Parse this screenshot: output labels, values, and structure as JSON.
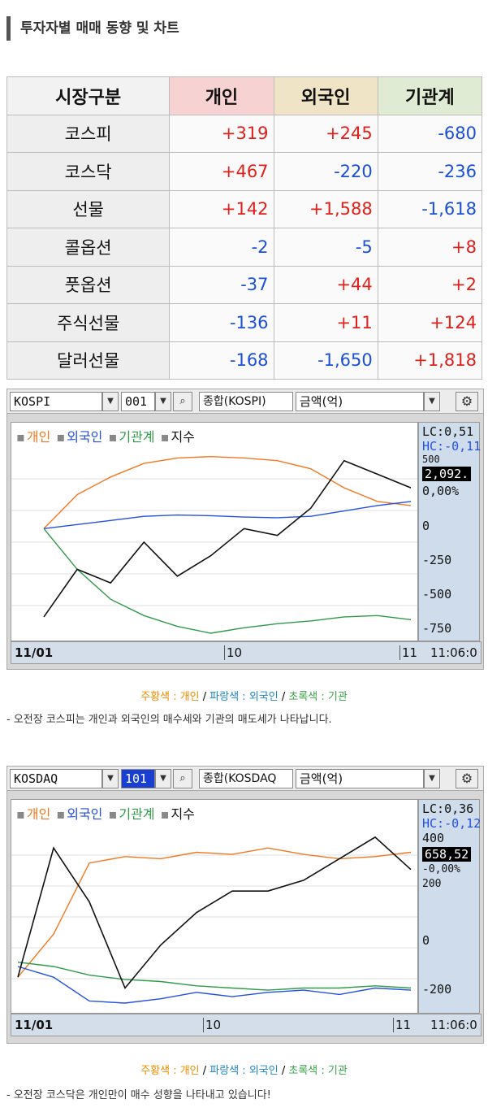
{
  "section_title": "투자자별 매매 동향 및 차트",
  "table": {
    "headers": [
      "시장구분",
      "개인",
      "외국인",
      "기관계"
    ],
    "rows": [
      {
        "label": "코스피",
        "values": [
          "+319",
          "+245",
          "-680"
        ]
      },
      {
        "label": "코스닥",
        "values": [
          "+467",
          "-220",
          "-236"
        ]
      },
      {
        "label": "선물",
        "values": [
          "+142",
          "+1,588",
          "-1,618"
        ]
      },
      {
        "label": "콜옵션",
        "values": [
          "-2",
          "-5",
          "+8"
        ]
      },
      {
        "label": "풋옵션",
        "values": [
          "-37",
          "+44",
          "+2"
        ]
      },
      {
        "label": "주식선물",
        "values": [
          "-136",
          "+11",
          "+124"
        ]
      },
      {
        "label": "달러선물",
        "values": [
          "-168",
          "-1,650",
          "+1,818"
        ]
      }
    ]
  },
  "charts": [
    {
      "market": "KOSPI",
      "code": "001",
      "index_name": "종합(KOSPI)",
      "unit": "금액(억)",
      "legend": [
        "개인",
        "외국인",
        "기관계",
        "지수"
      ],
      "lc": "LC:0,51",
      "hc": "HC:-0,11",
      "index_value": "2,092.",
      "change": "0,00%",
      "y_ticks": [
        "500",
        "0",
        "-250",
        "-500",
        "-750"
      ],
      "date": "11/01",
      "x_ticks": [
        "10",
        "11"
      ],
      "time": "11:06:0",
      "caption_parts": [
        "주황색 : 개인",
        "파랑색 : 외국인",
        "초록색 : 기관"
      ],
      "description": "- 오전장 코스피는 개인과 외국인의 매수세와 기관의 매도세가 나타납니다."
    },
    {
      "market": "KOSDAQ",
      "code": "101",
      "index_name": "종합(KOSDAQ",
      "unit": "금액(억)",
      "legend": [
        "개인",
        "외국인",
        "기관계",
        "지수"
      ],
      "lc": "LC:0,36",
      "hc": "HC:-0,12",
      "index_value": "658,52",
      "change": "-0,00%",
      "y_ticks": [
        "400",
        "200",
        "0",
        "-200"
      ],
      "date": "11/01",
      "x_ticks": [
        "10",
        "11"
      ],
      "time": "11:06:0",
      "caption_parts": [
        "주황색 : 개인",
        "파랑색 : 외국인",
        "초록색 : 기관"
      ],
      "description": "- 오전장 코스닥은 개인만이 매수 성향을 나타내고 있습니다!"
    }
  ],
  "colors": {
    "individual": "#f07820",
    "foreign": "#2450e0",
    "institution": "#2e9a48",
    "index": "#111111",
    "caption_orange": "#f28c00",
    "caption_blue": "#1f86c8",
    "caption_green": "#3aa24a",
    "positive": "#e0201b",
    "negative": "#1a4fd8"
  },
  "chart_data": [
    {
      "type": "line",
      "series": [
        {
          "name": "개인",
          "values": [
            0,
            250,
            380,
            480,
            520,
            530,
            520,
            500,
            440,
            300,
            200,
            170
          ]
        },
        {
          "name": "외국인",
          "values": [
            0,
            30,
            60,
            90,
            100,
            95,
            85,
            80,
            90,
            130,
            170,
            200
          ]
        },
        {
          "name": "기관계",
          "values": [
            0,
            -300,
            -520,
            -640,
            -720,
            -770,
            -730,
            -700,
            -680,
            -650,
            -640,
            -670
          ]
        },
        {
          "name": "지수",
          "values": [
            -650,
            -300,
            -400,
            -100,
            -350,
            -200,
            0,
            -50,
            150,
            500,
            400,
            300
          ]
        }
      ],
      "ylim": [
        -800,
        600
      ]
    },
    {
      "type": "line",
      "series": [
        {
          "name": "개인",
          "values": [
            -150,
            50,
            380,
            410,
            400,
            430,
            420,
            450,
            420,
            400,
            410,
            430
          ]
        },
        {
          "name": "외국인",
          "values": [
            -100,
            -150,
            -260,
            -270,
            -250,
            -220,
            -240,
            -220,
            -210,
            -230,
            -200,
            -210
          ]
        },
        {
          "name": "기관계",
          "values": [
            -80,
            -100,
            -140,
            -160,
            -170,
            -190,
            -200,
            -210,
            -200,
            -200,
            -190,
            -200
          ]
        },
        {
          "name": "지수",
          "values": [
            -150,
            450,
            200,
            -200,
            0,
            150,
            250,
            250,
            300,
            400,
            500,
            350
          ]
        }
      ],
      "ylim": [
        -300,
        560
      ]
    }
  ]
}
